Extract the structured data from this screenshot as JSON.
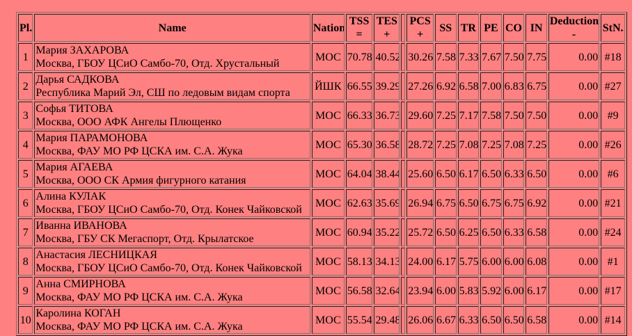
{
  "headers": [
    {
      "top": "Pl.",
      "bottom": ""
    },
    {
      "top": "Name",
      "bottom": ""
    },
    {
      "top": "Nation",
      "bottom": ""
    },
    {
      "top": "TSS",
      "bottom": "="
    },
    {
      "top": "TES",
      "bottom": "+"
    },
    {
      "top": "",
      "bottom": ""
    },
    {
      "top": "PCS",
      "bottom": "+"
    },
    {
      "top": "SS",
      "bottom": ""
    },
    {
      "top": "TR",
      "bottom": ""
    },
    {
      "top": "PE",
      "bottom": ""
    },
    {
      "top": "CO",
      "bottom": ""
    },
    {
      "top": "IN",
      "bottom": ""
    },
    {
      "top": "Deduction",
      "bottom": "-"
    },
    {
      "top": "StN.",
      "bottom": ""
    }
  ],
  "rows": [
    {
      "pl": "1",
      "name": "Мария ЗАХАРОВА",
      "club": "Москва, ГБОУ ЦСиО Самбо-70, Отд. Хрустальный",
      "nation": "МОС",
      "tss": "70.78",
      "tes": "40.52",
      "pcs": "30.26",
      "ss": "7.58",
      "tr": "7.33",
      "pe": "7.67",
      "co": "7.50",
      "in": "7.75",
      "ded": "0.00",
      "stn": "#18"
    },
    {
      "pl": "2",
      "name": "Дарья САДКОВА",
      "club": "Республика Марий Эл, СШ по ледовым видам спорта",
      "nation": "ЙШК",
      "tss": "66.55",
      "tes": "39.29",
      "pcs": "27.26",
      "ss": "6.92",
      "tr": "6.58",
      "pe": "7.00",
      "co": "6.83",
      "in": "6.75",
      "ded": "0.00",
      "stn": "#27"
    },
    {
      "pl": "3",
      "name": "Софья ТИТОВА",
      "club": "Москва, ООО АФК Ангелы Плющенко",
      "nation": "МОС",
      "tss": "66.33",
      "tes": "36.73",
      "pcs": "29.60",
      "ss": "7.25",
      "tr": "7.17",
      "pe": "7.58",
      "co": "7.50",
      "in": "7.50",
      "ded": "0.00",
      "stn": "#9"
    },
    {
      "pl": "4",
      "name": "Мария ПАРАМОНОВА",
      "club": "Москва, ФАУ МО РФ ЦСКА им. С.А. Жука",
      "nation": "МОС",
      "tss": "65.30",
      "tes": "36.58",
      "pcs": "28.72",
      "ss": "7.25",
      "tr": "7.08",
      "pe": "7.25",
      "co": "7.08",
      "in": "7.25",
      "ded": "0.00",
      "stn": "#26"
    },
    {
      "pl": "5",
      "name": "Мария АГАЕВА",
      "club": "Москва, ООО СК Армия фигурного катания",
      "nation": "МОС",
      "tss": "64.04",
      "tes": "38.44",
      "pcs": "25.60",
      "ss": "6.50",
      "tr": "6.17",
      "pe": "6.50",
      "co": "6.33",
      "in": "6.50",
      "ded": "0.00",
      "stn": "#6"
    },
    {
      "pl": "6",
      "name": "Алина КУЛАК",
      "club": "Москва, ГБОУ ЦСиО Самбо-70, Отд. Конек Чайковской",
      "nation": "МОС",
      "tss": "62.63",
      "tes": "35.69",
      "pcs": "26.94",
      "ss": "6.75",
      "tr": "6.50",
      "pe": "6.75",
      "co": "6.75",
      "in": "6.92",
      "ded": "0.00",
      "stn": "#21"
    },
    {
      "pl": "7",
      "name": "Иванна ИВАНОВА",
      "club": "Москва, ГБУ СК Мегаспорт, Отд. Крылатское",
      "nation": "МОС",
      "tss": "60.94",
      "tes": "35.22",
      "pcs": "25.72",
      "ss": "6.50",
      "tr": "6.25",
      "pe": "6.50",
      "co": "6.33",
      "in": "6.58",
      "ded": "0.00",
      "stn": "#24"
    },
    {
      "pl": "8",
      "name": "Анастасия ЛЕСНИЦКАЯ",
      "club": "Москва, ГБОУ ЦСиО Самбо-70, Отд. Конек Чайковской",
      "nation": "МОС",
      "tss": "58.13",
      "tes": "34.13",
      "pcs": "24.00",
      "ss": "6.17",
      "tr": "5.75",
      "pe": "6.00",
      "co": "6.00",
      "in": "6.08",
      "ded": "0.00",
      "stn": "#1"
    },
    {
      "pl": "9",
      "name": "Анна СМИРНОВА",
      "club": "Москва, ФАУ МО РФ ЦСКА им. С.А. Жука",
      "nation": "МОС",
      "tss": "56.58",
      "tes": "32.64",
      "pcs": "23.94",
      "ss": "6.00",
      "tr": "5.83",
      "pe": "5.92",
      "co": "6.00",
      "in": "6.17",
      "ded": "0.00",
      "stn": "#17"
    },
    {
      "pl": "10",
      "name": "Каролина КОГАН",
      "club": "Москва, ФАУ МО РФ ЦСКА им. С.А. Жука",
      "nation": "МОС",
      "tss": "55.54",
      "tes": "29.48",
      "pcs": "26.06",
      "ss": "6.67",
      "tr": "6.33",
      "pe": "6.50",
      "co": "6.50",
      "in": "6.58",
      "ded": "0.00",
      "stn": "#14"
    }
  ]
}
